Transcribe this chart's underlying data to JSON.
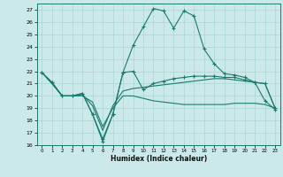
{
  "xlabel": "Humidex (Indice chaleur)",
  "xlim": [
    -0.5,
    23.5
  ],
  "ylim": [
    16,
    27.5
  ],
  "yticks": [
    16,
    17,
    18,
    19,
    20,
    21,
    22,
    23,
    24,
    25,
    26,
    27
  ],
  "xticks": [
    0,
    1,
    2,
    3,
    4,
    5,
    6,
    7,
    8,
    9,
    10,
    11,
    12,
    13,
    14,
    15,
    16,
    17,
    18,
    19,
    20,
    21,
    22,
    23
  ],
  "bg_color": "#cce9e9",
  "line_color": "#1a7a6e",
  "grid_color": "#aad4d4",
  "series": [
    {
      "x": [
        0,
        1,
        2,
        3,
        4,
        5,
        6,
        7,
        8,
        9,
        10,
        11,
        12,
        13,
        14,
        15,
        16,
        17,
        18,
        19,
        20,
        21,
        22,
        23
      ],
      "y": [
        21.9,
        21.1,
        20.0,
        20.0,
        20.2,
        18.5,
        16.3,
        18.5,
        21.9,
        24.1,
        25.6,
        27.1,
        26.9,
        25.5,
        26.9,
        26.5,
        23.8,
        22.6,
        21.8,
        21.7,
        21.5,
        21.1,
        19.6,
        18.9
      ],
      "marker": "+"
    },
    {
      "x": [
        0,
        1,
        2,
        3,
        4,
        5,
        6,
        7,
        8,
        9,
        10,
        11,
        12,
        13,
        14,
        15,
        16,
        17,
        18,
        19,
        20,
        21,
        22,
        23
      ],
      "y": [
        21.9,
        21.1,
        20.0,
        20.0,
        20.2,
        18.5,
        16.5,
        18.5,
        21.9,
        22.0,
        20.5,
        21.0,
        21.2,
        21.4,
        21.5,
        21.6,
        21.6,
        21.6,
        21.5,
        21.5,
        21.3,
        21.1,
        21.0,
        19.0
      ],
      "marker": "+"
    },
    {
      "x": [
        0,
        1,
        2,
        3,
        4,
        5,
        6,
        7,
        8,
        9,
        10,
        11,
        12,
        13,
        14,
        15,
        16,
        17,
        18,
        19,
        20,
        21,
        22,
        23
      ],
      "y": [
        21.9,
        21.0,
        20.0,
        20.0,
        20.1,
        19.2,
        17.2,
        19.2,
        20.4,
        20.6,
        20.7,
        20.8,
        20.9,
        21.0,
        21.1,
        21.2,
        21.3,
        21.4,
        21.4,
        21.3,
        21.2,
        21.1,
        21.0,
        19.0
      ],
      "marker": null
    },
    {
      "x": [
        0,
        1,
        2,
        3,
        4,
        5,
        6,
        7,
        8,
        9,
        10,
        11,
        12,
        13,
        14,
        15,
        16,
        17,
        18,
        19,
        20,
        21,
        22,
        23
      ],
      "y": [
        21.9,
        21.0,
        20.0,
        20.0,
        20.0,
        19.5,
        17.5,
        19.0,
        20.0,
        20.0,
        19.8,
        19.6,
        19.5,
        19.4,
        19.3,
        19.3,
        19.3,
        19.3,
        19.3,
        19.4,
        19.4,
        19.4,
        19.3,
        19.0
      ],
      "marker": null
    }
  ]
}
